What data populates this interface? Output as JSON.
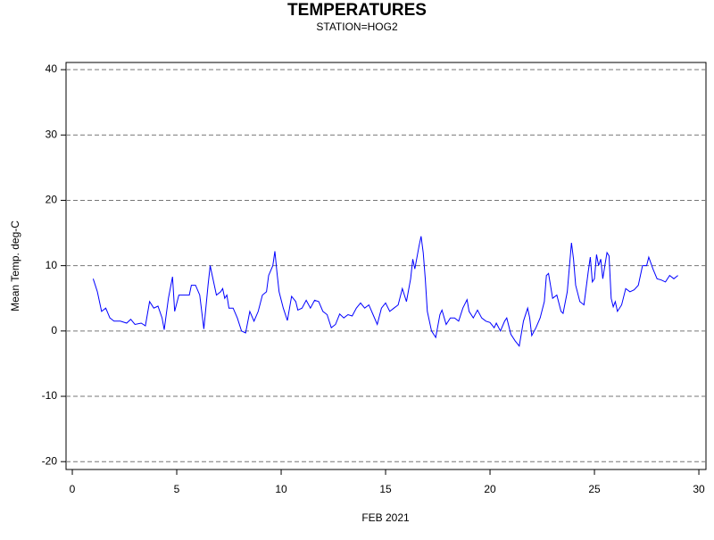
{
  "chart_data": {
    "type": "line",
    "title": "TEMPERATURES",
    "subtitle": "STATION=HOG2",
    "x_label": "FEB 2021",
    "y_label": "Mean Temp. deg-C",
    "color": "#0000ff",
    "grid": true,
    "xlim": [
      -0.3,
      30.34
    ],
    "ylim": [
      -21.2,
      41.1
    ],
    "xticks": [
      0,
      5,
      10,
      15,
      20,
      25,
      30
    ],
    "yticks": [
      -20,
      -10,
      0,
      10,
      20,
      30,
      40
    ],
    "x": [
      1.0,
      1.2,
      1.4,
      1.6,
      1.8,
      2.0,
      2.3,
      2.6,
      2.8,
      3.0,
      3.3,
      3.5,
      3.7,
      3.9,
      4.1,
      4.3,
      4.4,
      4.6,
      4.8,
      4.9,
      5.1,
      5.4,
      5.6,
      5.7,
      5.9,
      6.1,
      6.3,
      6.5,
      6.6,
      6.7,
      6.9,
      7.1,
      7.2,
      7.3,
      7.4,
      7.5,
      7.7,
      7.9,
      8.1,
      8.3,
      8.5,
      8.7,
      8.9,
      9.1,
      9.3,
      9.4,
      9.6,
      9.7,
      9.8,
      9.9,
      10.1,
      10.3,
      10.5,
      10.7,
      10.8,
      11.0,
      11.2,
      11.4,
      11.6,
      11.8,
      12.0,
      12.2,
      12.4,
      12.6,
      12.8,
      13.0,
      13.2,
      13.4,
      13.6,
      13.8,
      14.0,
      14.2,
      14.4,
      14.6,
      14.8,
      15.0,
      15.2,
      15.4,
      15.6,
      15.8,
      16.0,
      16.2,
      16.3,
      16.4,
      16.6,
      16.7,
      16.8,
      16.9,
      17.0,
      17.2,
      17.4,
      17.6,
      17.7,
      17.9,
      18.1,
      18.3,
      18.5,
      18.7,
      18.9,
      19.0,
      19.2,
      19.4,
      19.6,
      19.8,
      20.0,
      20.2,
      20.3,
      20.5,
      20.7,
      20.8,
      21.0,
      21.2,
      21.4,
      21.6,
      21.8,
      21.9,
      22.0,
      22.2,
      22.4,
      22.6,
      22.7,
      22.8,
      23.0,
      23.2,
      23.4,
      23.5,
      23.7,
      23.9,
      24.0,
      24.1,
      24.3,
      24.5,
      24.7,
      24.8,
      24.9,
      25.0,
      25.1,
      25.2,
      25.3,
      25.4,
      25.5,
      25.6,
      25.7,
      25.8,
      25.9,
      26.0,
      26.1,
      26.3,
      26.5,
      26.7,
      26.9,
      27.1,
      27.3,
      27.5,
      27.6,
      27.8,
      28.0,
      28.2,
      28.4,
      28.6,
      28.8,
      29.0
    ],
    "values": [
      8,
      6,
      3,
      3.5,
      2,
      1.5,
      1.5,
      1.2,
      1.8,
      1,
      1.2,
      0.8,
      4.5,
      3.5,
      3.8,
      2,
      0.2,
      5,
      8.3,
      3,
      5.5,
      5.5,
      5.5,
      7,
      7,
      5.5,
      0.3,
      7,
      10,
      8.5,
      5.5,
      6,
      6.5,
      5,
      5.5,
      3.5,
      3.5,
      2,
      0,
      -0.3,
      3,
      1.5,
      3,
      5.5,
      6,
      8.5,
      10,
      12.2,
      9,
      6,
      3.5,
      1.6,
      5.3,
      4.5,
      3.2,
      3.5,
      4.7,
      3.5,
      4.7,
      4.5,
      3,
      2.5,
      0.5,
      1,
      2.6,
      2,
      2.5,
      2.3,
      3.5,
      4.3,
      3.5,
      4,
      2.5,
      1,
      3.5,
      4.3,
      3,
      3.5,
      4,
      6.5,
      4.5,
      8,
      11,
      9.5,
      13,
      14.5,
      12,
      8,
      3,
      0,
      -1,
      2.5,
      3.2,
      1,
      2,
      2,
      1.5,
      3.5,
      4.8,
      3,
      2,
      3.2,
      2,
      1.5,
      1.3,
      0.5,
      1.2,
      0,
      1.5,
      2,
      -0.5,
      -1.5,
      -2.3,
      1.5,
      3.5,
      2,
      -0.7,
      0.5,
      2,
      4.5,
      8.5,
      8.8,
      5,
      5.5,
      3,
      2.7,
      6,
      13.5,
      11,
      7,
      4.5,
      4,
      9,
      11.3,
      7.5,
      8,
      11.7,
      10,
      11,
      8,
      10,
      12,
      11.5,
      5,
      3.7,
      4.5,
      3,
      4,
      6.5,
      6,
      6.3,
      7,
      10,
      10,
      11.3,
      9.5,
      8,
      7.8,
      7.5,
      8.5,
      8,
      8.5
    ]
  }
}
